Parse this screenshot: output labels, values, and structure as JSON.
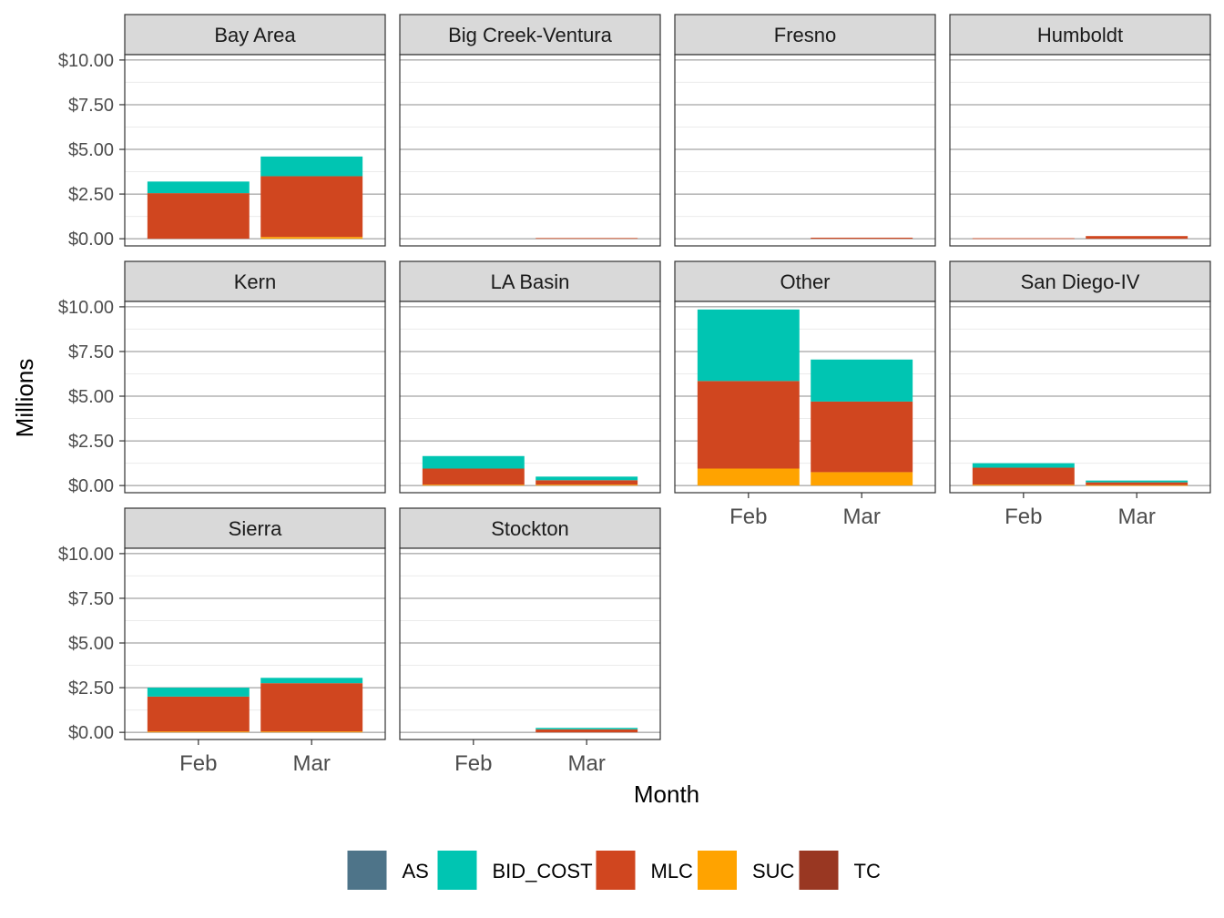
{
  "chart_data": {
    "type": "bar",
    "stacked": true,
    "facet_layout": "wrap-4-columns",
    "xlabel": "Month",
    "ylabel": "Millions",
    "ylim": [
      0,
      10
    ],
    "yticks": [
      0,
      2.5,
      5,
      7.5,
      10
    ],
    "ytick_labels": [
      "$0.00",
      "$2.50",
      "$5.00",
      "$7.50",
      "$10.00"
    ],
    "categories": [
      "Feb",
      "Mar"
    ],
    "grid": true,
    "legend": {
      "position": "bottom",
      "items": [
        {
          "name": "AS",
          "color": "#4E7489"
        },
        {
          "name": "BID_COST",
          "color": "#00C5B2"
        },
        {
          "name": "MLC",
          "color": "#D0461F"
        },
        {
          "name": "SUC",
          "color": "#FFA300"
        },
        {
          "name": "TC",
          "color": "#993722"
        }
      ]
    },
    "stack_order": [
      "SUC",
      "MLC",
      "BID_COST",
      "AS",
      "TC"
    ],
    "panels": [
      {
        "name": "Bay Area",
        "series": {
          "AS": [
            0,
            0
          ],
          "BID_COST": [
            0.65,
            1.1
          ],
          "MLC": [
            2.55,
            3.4
          ],
          "SUC": [
            0,
            0.1
          ],
          "TC": [
            0,
            0
          ]
        }
      },
      {
        "name": "Big Creek-Ventura",
        "series": {
          "AS": [
            0,
            0
          ],
          "BID_COST": [
            0,
            0
          ],
          "MLC": [
            0,
            0.04
          ],
          "SUC": [
            0,
            0
          ],
          "TC": [
            0,
            0
          ]
        }
      },
      {
        "name": "Fresno",
        "series": {
          "AS": [
            0,
            0
          ],
          "BID_COST": [
            0,
            0
          ],
          "MLC": [
            0,
            0.06
          ],
          "SUC": [
            0,
            0
          ],
          "TC": [
            0,
            0
          ]
        }
      },
      {
        "name": "Humboldt",
        "series": {
          "AS": [
            0,
            0
          ],
          "BID_COST": [
            0,
            0
          ],
          "MLC": [
            0.03,
            0.15
          ],
          "SUC": [
            0,
            0
          ],
          "TC": [
            0,
            0
          ]
        }
      },
      {
        "name": "Kern",
        "series": {
          "AS": [
            0,
            0
          ],
          "BID_COST": [
            0,
            0
          ],
          "MLC": [
            0,
            0
          ],
          "SUC": [
            0,
            0
          ],
          "TC": [
            0,
            0
          ]
        }
      },
      {
        "name": "LA Basin",
        "series": {
          "AS": [
            0,
            0
          ],
          "BID_COST": [
            0.7,
            0.2
          ],
          "MLC": [
            0.9,
            0.25
          ],
          "SUC": [
            0.05,
            0.05
          ],
          "TC": [
            0,
            0
          ]
        }
      },
      {
        "name": "Other",
        "series": {
          "AS": [
            0,
            0
          ],
          "BID_COST": [
            4.0,
            2.35
          ],
          "MLC": [
            4.9,
            3.95
          ],
          "SUC": [
            0.95,
            0.75
          ],
          "TC": [
            0,
            0
          ]
        }
      },
      {
        "name": "San Diego-IV",
        "series": {
          "AS": [
            0,
            0
          ],
          "BID_COST": [
            0.25,
            0.1
          ],
          "MLC": [
            0.95,
            0.15
          ],
          "SUC": [
            0.05,
            0.03
          ],
          "TC": [
            0,
            0
          ]
        }
      },
      {
        "name": "Sierra",
        "series": {
          "AS": [
            0,
            0
          ],
          "BID_COST": [
            0.5,
            0.3
          ],
          "MLC": [
            1.95,
            2.7
          ],
          "SUC": [
            0.05,
            0.05
          ],
          "TC": [
            0,
            0
          ]
        }
      },
      {
        "name": "Stockton",
        "series": {
          "AS": [
            0,
            0
          ],
          "BID_COST": [
            0,
            0.08
          ],
          "MLC": [
            0,
            0.17
          ],
          "SUC": [
            0,
            0
          ],
          "TC": [
            0,
            0
          ]
        }
      }
    ]
  }
}
